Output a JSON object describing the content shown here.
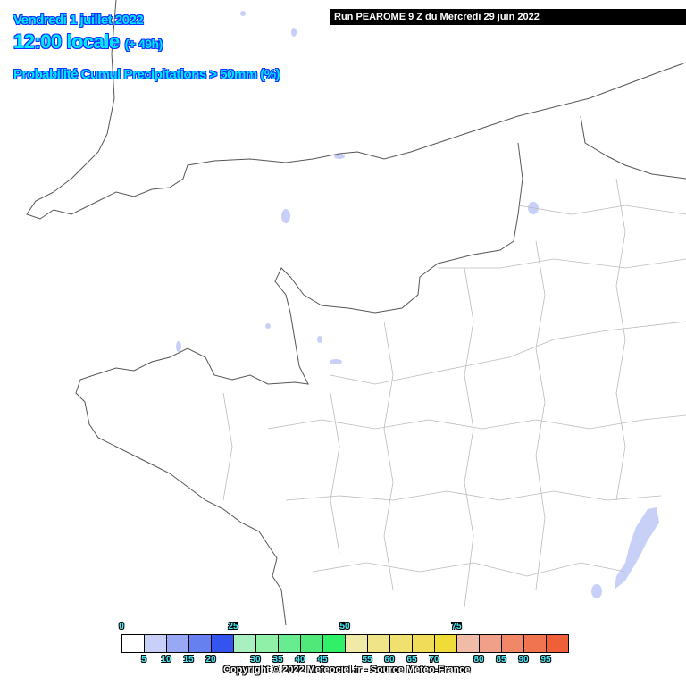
{
  "header": {
    "date": "Vendredi 1 juillet 2022",
    "time": "12:00 locale",
    "lead": "(+ 49h)",
    "parameter": "Probabilité Cumul Precipitations > 50mm (%)"
  },
  "run_label": "Run PEAROME 9 Z du Mercredi 29 juin 2022",
  "legend": {
    "top_labels": [
      "0",
      "25",
      "50",
      "75"
    ],
    "bottom_labels": [
      "5",
      "10",
      "15",
      "20",
      "30",
      "35",
      "40",
      "45",
      "55",
      "60",
      "65",
      "70",
      "80",
      "85",
      "90",
      "95"
    ],
    "colors": [
      "#ffffff",
      "#c8d0f8",
      "#98a8f4",
      "#6680f0",
      "#3454f0",
      "#a8f0c0",
      "#90f0a8",
      "#68ec90",
      "#50e878",
      "#30f068",
      "#f0eaa8",
      "#f0e488",
      "#f0e070",
      "#f0dc58",
      "#f0dc38",
      "#f0bca8",
      "#f0a088",
      "#f08868",
      "#f07450",
      "#f06038"
    ]
  },
  "copyright": "Copyright © 2022 Meteociel.fr - Source Météo-France",
  "map_colors": {
    "background": "#ffffff",
    "borders": "#555555",
    "departments": "#bbbbbb",
    "low_probability": "#c8d0f8"
  }
}
